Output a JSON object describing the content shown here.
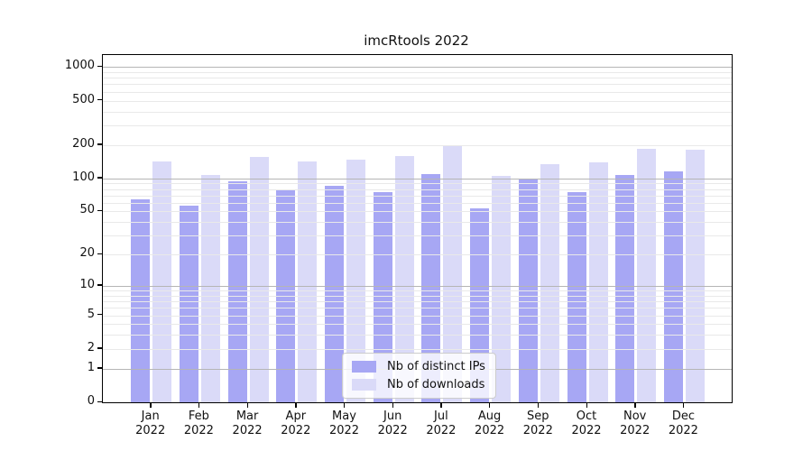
{
  "title": "imcRtools 2022",
  "chart_data": {
    "type": "bar",
    "title": "imcRtools 2022",
    "categories": [
      "Jan",
      "Feb",
      "Mar",
      "Apr",
      "May",
      "Jun",
      "Jul",
      "Aug",
      "Sep",
      "Oct",
      "Nov",
      "Dec"
    ],
    "category_year": "2022",
    "series": [
      {
        "name": "Nb of distinct IPs",
        "color": "#a7a7f4",
        "values": [
          65,
          56,
          94,
          80,
          86,
          75,
          110,
          53,
          98,
          75,
          108,
          115
        ]
      },
      {
        "name": "Nb of downloads",
        "color": "#dadaf8",
        "values": [
          142,
          108,
          155,
          141,
          148,
          160,
          195,
          105,
          134,
          139,
          185,
          180
        ]
      }
    ],
    "yscale": "log1p",
    "yticks": [
      0,
      1,
      2,
      5,
      10,
      20,
      50,
      100,
      200,
      500,
      1000
    ],
    "ylim": [
      0,
      1290
    ],
    "xlabel": "",
    "ylabel": "",
    "grid": "major-and-minor-horizontal",
    "legend_position": "lower center"
  }
}
